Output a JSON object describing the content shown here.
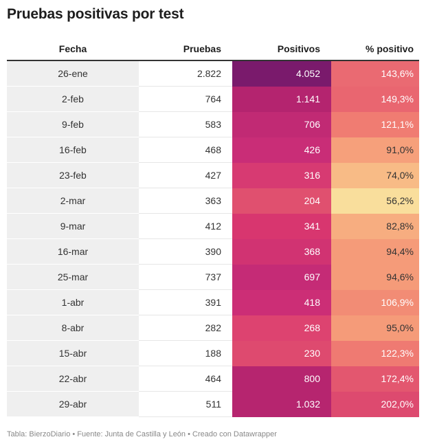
{
  "header": {
    "title": "Pruebas positivas por test"
  },
  "columns": [
    "Fecha",
    "Pruebas",
    "Positivos",
    "% positivo"
  ],
  "chart_data": {
    "type": "table",
    "title": "Pruebas positivas por test",
    "columns": [
      "Fecha",
      "Pruebas",
      "Positivos",
      "% positivo"
    ],
    "rows": [
      {
        "fecha": "26-ene",
        "pruebas": "2.822",
        "positivos": "4.052",
        "pct": "143,6%",
        "pos_color": "#7a1a6c",
        "pct_color": "#ea6a72",
        "pos_text": "#ffffff",
        "pct_text": "#ffffff"
      },
      {
        "fecha": "2-feb",
        "pruebas": "764",
        "positivos": "1.141",
        "pct": "149,3%",
        "pos_color": "#b4246f",
        "pct_color": "#e96670",
        "pos_text": "#ffffff",
        "pct_text": "#ffffff"
      },
      {
        "fecha": "9-feb",
        "pruebas": "583",
        "positivos": "706",
        "pct": "121,1%",
        "pos_color": "#c12a74",
        "pct_color": "#f07c72",
        "pos_text": "#ffffff",
        "pct_text": "#ffffff"
      },
      {
        "fecha": "16-feb",
        "pruebas": "468",
        "positivos": "426",
        "pct": "91,0%",
        "pos_color": "#c92d77",
        "pct_color": "#f6a07b",
        "pos_text": "#ffffff",
        "pct_text": "#333333"
      },
      {
        "fecha": "23-feb",
        "pruebas": "427",
        "positivos": "316",
        "pct": "74,0%",
        "pos_color": "#d73a72",
        "pct_color": "#f8bb86",
        "pos_text": "#ffffff",
        "pct_text": "#333333"
      },
      {
        "fecha": "2-mar",
        "pruebas": "363",
        "positivos": "204",
        "pct": "56,2%",
        "pos_color": "#e0506f",
        "pct_color": "#f9de9c",
        "pos_text": "#ffffff",
        "pct_text": "#333333"
      },
      {
        "fecha": "9-mar",
        "pruebas": "412",
        "positivos": "341",
        "pct": "82,8%",
        "pos_color": "#d8366f",
        "pct_color": "#f7ad80",
        "pos_text": "#ffffff",
        "pct_text": "#333333"
      },
      {
        "fecha": "16-mar",
        "pruebas": "390",
        "positivos": "368",
        "pct": "94,4%",
        "pos_color": "#d13372",
        "pct_color": "#f59b79",
        "pos_text": "#ffffff",
        "pct_text": "#333333"
      },
      {
        "fecha": "25-mar",
        "pruebas": "737",
        "positivos": "697",
        "pct": "94,6%",
        "pos_color": "#c52b76",
        "pct_color": "#f59b79",
        "pos_text": "#ffffff",
        "pct_text": "#333333"
      },
      {
        "fecha": "1-abr",
        "pruebas": "391",
        "positivos": "418",
        "pct": "106,9%",
        "pos_color": "#cc2e76",
        "pct_color": "#f28c75",
        "pos_text": "#ffffff",
        "pct_text": "#ffffff"
      },
      {
        "fecha": "8-abr",
        "pruebas": "282",
        "positivos": "268",
        "pct": "95,0%",
        "pos_color": "#dd4370",
        "pct_color": "#f59b79",
        "pos_text": "#ffffff",
        "pct_text": "#333333"
      },
      {
        "fecha": "15-abr",
        "pruebas": "188",
        "positivos": "230",
        "pct": "122,3%",
        "pos_color": "#de4a6f",
        "pct_color": "#ef7a72",
        "pos_text": "#ffffff",
        "pct_text": "#ffffff"
      },
      {
        "fecha": "22-abr",
        "pruebas": "464",
        "positivos": "800",
        "pct": "172,4%",
        "pos_color": "#b6256f",
        "pct_color": "#e3576f",
        "pos_text": "#ffffff",
        "pct_text": "#ffffff"
      },
      {
        "fecha": "29-abr",
        "pruebas": "511",
        "positivos": "1.032",
        "pct": "202,0%",
        "pos_color": "#b6256f",
        "pct_color": "#dd4a6f",
        "pos_text": "#ffffff",
        "pct_text": "#ffffff"
      }
    ]
  },
  "footer": {
    "text": "Tabla: BierzoDiario • Fuente: Junta de Castilla y León • Creado con Datawrapper"
  }
}
